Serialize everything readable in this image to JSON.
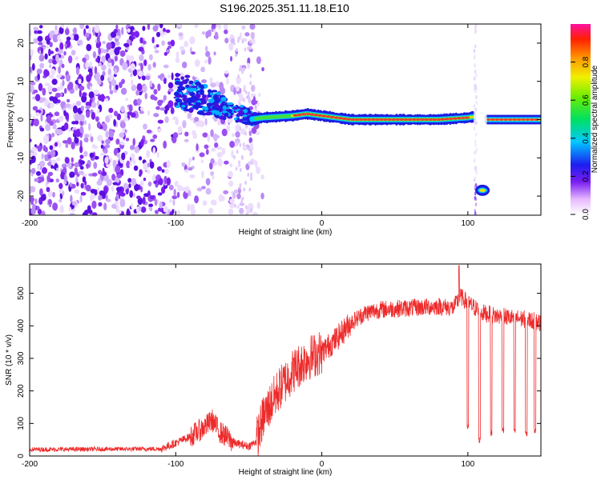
{
  "title": "S196.2025.351.11.18.E10",
  "colors": {
    "snr_line": "#ee2a2a",
    "axis": "#000000",
    "spectro_ridge": "#e83838"
  },
  "chart_data": [
    {
      "type": "heatmap",
      "name": "spectrogram",
      "xlabel": "Height of straight line (km)",
      "ylabel": "Frequency (Hz)",
      "xlim": [
        -200,
        150
      ],
      "ylim": [
        -25,
        25
      ],
      "x_ticks": [
        -200,
        -100,
        0,
        100
      ],
      "x_tick_labels": [
        "-200",
        "-100",
        "0",
        "100"
      ],
      "y_ticks": [
        -20,
        -10,
        0,
        10,
        20
      ],
      "y_tick_labels": [
        "-20",
        "-10",
        "0",
        "10",
        "20"
      ],
      "colorbar": {
        "label": "Normalized spectral amplitude",
        "range": [
          0,
          1
        ],
        "ticks": [
          0,
          0.2,
          0.4,
          0.6,
          0.8
        ],
        "tick_labels": [
          "0.0",
          "0.2",
          "0.4",
          "0.6",
          "0.8"
        ]
      },
      "ridge": {
        "description": "dominant frequency track",
        "x": [
          -100,
          -80,
          -60,
          -50,
          -40,
          -20,
          -10,
          0,
          10,
          20,
          40,
          60,
          80,
          100,
          105
        ],
        "y": [
          8,
          5,
          2,
          0,
          0.5,
          1,
          1.5,
          1,
          0.5,
          0,
          0,
          0,
          0,
          0.5,
          0.8
        ]
      },
      "gaps": [
        [
          104,
          108
        ],
        [
          111,
          113
        ]
      ],
      "isolated_feature": {
        "x": [
          108,
          112
        ],
        "y": -18.5
      },
      "segments_after_gap": {
        "x": [
          113,
          150
        ],
        "y": 0
      }
    },
    {
      "type": "line",
      "name": "snr",
      "xlabel": "Height of straight line (km)",
      "ylabel": "SNR (10 * v/v)",
      "xlim": [
        -200,
        150
      ],
      "ylim": [
        0,
        590
      ],
      "x_ticks": [
        -200,
        -100,
        0,
        100
      ],
      "x_tick_labels": [
        "-200",
        "-100",
        "0",
        "100"
      ],
      "y_ticks": [
        0,
        100,
        200,
        300,
        400,
        500
      ],
      "y_tick_labels": [
        "0",
        "100",
        "200",
        "300",
        "400",
        "500"
      ],
      "trend": {
        "x": [
          -200,
          -110,
          -100,
          -90,
          -80,
          -75,
          -70,
          -60,
          -50,
          -45,
          -40,
          -30,
          -20,
          -10,
          0,
          10,
          20,
          30,
          40,
          60,
          80,
          90,
          95,
          100,
          110,
          120,
          130,
          140,
          150
        ],
        "y": [
          20,
          22,
          40,
          60,
          90,
          110,
          75,
          40,
          30,
          45,
          120,
          200,
          260,
          300,
          320,
          360,
          410,
          440,
          450,
          455,
          460,
          455,
          490,
          470,
          440,
          430,
          425,
          420,
          410
        ]
      },
      "dips": [
        {
          "x": 100,
          "y": 80
        },
        {
          "x": 108,
          "y": 40
        },
        {
          "x": 116,
          "y": 60
        },
        {
          "x": 124,
          "y": 70
        },
        {
          "x": 132,
          "y": 65
        },
        {
          "x": 140,
          "y": 60
        },
        {
          "x": 146,
          "y": 70
        }
      ],
      "peak": {
        "x": 94,
        "y": 585
      }
    }
  ]
}
